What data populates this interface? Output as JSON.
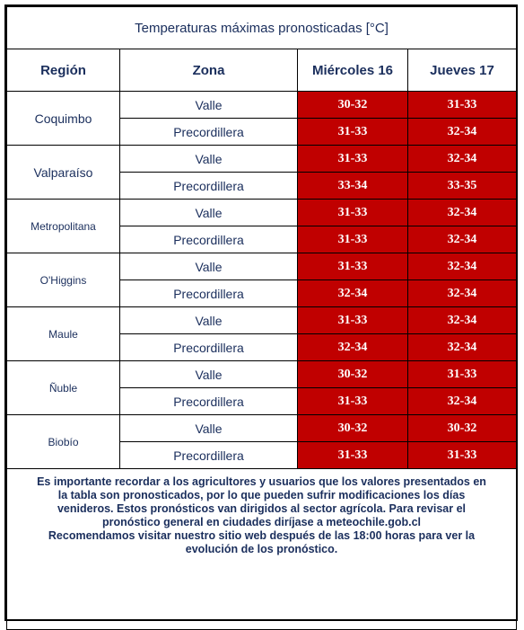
{
  "title": "Temperaturas máximas pronosticadas [°C]",
  "headers": {
    "region": "Región",
    "zona": "Zona",
    "day1": "Miércoles 16",
    "day2": "Jueves 17"
  },
  "regions": [
    {
      "name": "Coquimbo",
      "rows": [
        {
          "zona": "Valle",
          "d1": "30-32",
          "d2": "31-33"
        },
        {
          "zona": "Precordillera",
          "d1": "31-33",
          "d2": "32-34"
        }
      ]
    },
    {
      "name": "Valparaíso",
      "rows": [
        {
          "zona": "Valle",
          "d1": "31-33",
          "d2": "32-34"
        },
        {
          "zona": "Precordillera",
          "d1": "33-34",
          "d2": "33-35"
        }
      ]
    },
    {
      "name": "Metropolitana",
      "rows": [
        {
          "zona": "Valle",
          "d1": "31-33",
          "d2": "32-34"
        },
        {
          "zona": "Precordillera",
          "d1": "31-33",
          "d2": "32-34"
        }
      ]
    },
    {
      "name": "O'Higgins",
      "rows": [
        {
          "zona": "Valle",
          "d1": "31-33",
          "d2": "32-34"
        },
        {
          "zona": "Precordillera",
          "d1": "32-34",
          "d2": "32-34"
        }
      ]
    },
    {
      "name": "Maule",
      "rows": [
        {
          "zona": "Valle",
          "d1": "31-33",
          "d2": "32-34"
        },
        {
          "zona": "Precordillera",
          "d1": "32-34",
          "d2": "32-34"
        }
      ]
    },
    {
      "name": "Ñuble",
      "rows": [
        {
          "zona": "Valle",
          "d1": "30-32",
          "d2": "31-33"
        },
        {
          "zona": "Precordillera",
          "d1": "31-33",
          "d2": "32-34"
        }
      ]
    },
    {
      "name": "Biobío",
      "rows": [
        {
          "zona": "Valle",
          "d1": "30-32",
          "d2": "30-32"
        },
        {
          "zona": "Precordillera",
          "d1": "31-33",
          "d2": "31-33"
        }
      ]
    }
  ],
  "note": {
    "line1": "Es importante recordar a los agricultores y usuarios que los valores presentados en",
    "line2": "la tabla son pronosticados, por lo que pueden sufrir modificaciones los días",
    "line3": "venideros. Estos pronósticos van dirigidos al sector agrícola. Para revisar el",
    "line4": "pronóstico general en ciudades diríjase a meteochile.gob.cl",
    "line5": "Recomendamos visitar nuestro sitio web después de las 18:00 horas para ver la",
    "line6": "evolución de los pronóstico."
  },
  "colors": {
    "cell_bg": "#c00000",
    "text": "#1a2e5c"
  }
}
